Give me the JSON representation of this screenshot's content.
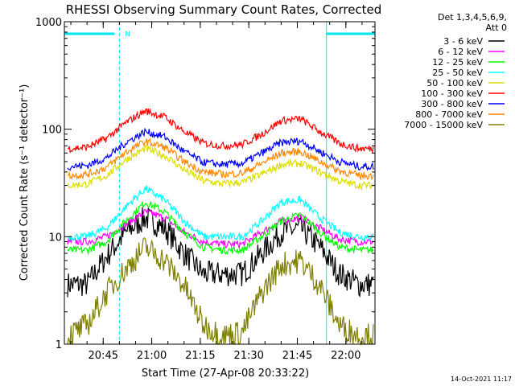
{
  "chart_data": {
    "type": "line",
    "title": "RHESSI Observing Summary Count Rates, Corrected",
    "xlabel": "Start Time (27-Apr-08 20:33:22)",
    "ylabel": "Corrected Count Rate (s⁻¹ detector⁻¹)",
    "yscale": "log",
    "xlim": [
      "20:33",
      "22:09"
    ],
    "ylim": [
      1,
      1000
    ],
    "x_ticks": [
      "20:45",
      "21:00",
      "21:15",
      "21:30",
      "21:45",
      "22:00"
    ],
    "y_ticks": [
      "1",
      "10",
      "100",
      "1000"
    ],
    "legend_header": [
      "Det 1,3,4,5,6,9,",
      "Att 0"
    ],
    "legend_position": "top-right",
    "footer_date": "14-Oct-2021 11:17",
    "night_marker_label": "N",
    "night_intervals": [
      [
        "20:33",
        "20:50"
      ],
      [
        "21:54",
        "22:09"
      ]
    ],
    "night_color": "#00e5ee",
    "series": [
      {
        "name": "3 - 6 keV",
        "color": "#000000",
        "x": [
          "20:34",
          "20:40",
          "20:46",
          "20:52",
          "20:58",
          "21:04",
          "21:10",
          "21:16",
          "21:22",
          "21:28",
          "21:34",
          "21:40",
          "21:46",
          "21:52",
          "21:58",
          "22:04",
          "22:08"
        ],
        "values": [
          3.6,
          3.6,
          6.5,
          11,
          15,
          12,
          7,
          4.5,
          4.5,
          4.5,
          7,
          11,
          12,
          8,
          4.5,
          3.6,
          3.6
        ]
      },
      {
        "name": "6 - 12 keV",
        "color": "#ff00ff",
        "x": [
          "20:34",
          "20:40",
          "20:46",
          "20:52",
          "20:58",
          "21:04",
          "21:10",
          "21:16",
          "21:22",
          "21:28",
          "21:34",
          "21:40",
          "21:46",
          "21:52",
          "21:58",
          "22:04",
          "22:08"
        ],
        "values": [
          9,
          9,
          10,
          13,
          17,
          15,
          11,
          9,
          8.5,
          8.5,
          11,
          14,
          15,
          12,
          9.5,
          9,
          9
        ]
      },
      {
        "name": "12 - 25 keV",
        "color": "#00ff00",
        "x": [
          "20:34",
          "20:40",
          "20:46",
          "20:52",
          "20:58",
          "21:04",
          "21:10",
          "21:16",
          "21:22",
          "21:28",
          "21:34",
          "21:40",
          "21:46",
          "21:52",
          "21:58",
          "22:04",
          "22:08"
        ],
        "values": [
          7.5,
          7.5,
          9,
          14,
          21,
          17,
          11,
          8,
          7.5,
          7.5,
          10,
          14,
          16,
          11,
          8,
          7.5,
          7.5
        ]
      },
      {
        "name": "25 - 50 keV",
        "color": "#00ffff",
        "x": [
          "20:34",
          "20:40",
          "20:46",
          "20:52",
          "20:58",
          "21:04",
          "21:10",
          "21:16",
          "21:22",
          "21:28",
          "21:34",
          "21:40",
          "21:46",
          "21:52",
          "21:58",
          "22:04",
          "22:08"
        ],
        "values": [
          10,
          10,
          12,
          19,
          28,
          22,
          14,
          10,
          10,
          10,
          14,
          21,
          22,
          15,
          11,
          10,
          10
        ]
      },
      {
        "name": "50 - 100 keV",
        "color": "#dddd00",
        "x": [
          "20:34",
          "20:40",
          "20:46",
          "20:52",
          "20:58",
          "21:04",
          "21:10",
          "21:16",
          "21:22",
          "21:28",
          "21:34",
          "21:40",
          "21:46",
          "21:52",
          "21:58",
          "22:04",
          "22:08"
        ],
        "values": [
          30,
          31,
          37,
          52,
          66,
          57,
          42,
          33,
          31,
          32,
          38,
          47,
          48,
          40,
          33,
          30,
          30
        ]
      },
      {
        "name": "100 - 300 keV",
        "color": "#ff0000",
        "x": [
          "20:34",
          "20:40",
          "20:46",
          "20:52",
          "20:58",
          "21:04",
          "21:10",
          "21:16",
          "21:22",
          "21:28",
          "21:34",
          "21:40",
          "21:46",
          "21:52",
          "21:58",
          "22:04",
          "22:08"
        ],
        "values": [
          66,
          68,
          82,
          115,
          148,
          130,
          95,
          74,
          70,
          72,
          90,
          120,
          125,
          95,
          74,
          66,
          66
        ]
      },
      {
        "name": "300 - 800 keV",
        "color": "#0000ff",
        "x": [
          "20:34",
          "20:40",
          "20:46",
          "20:52",
          "20:58",
          "21:04",
          "21:10",
          "21:16",
          "21:22",
          "21:28",
          "21:34",
          "21:40",
          "21:46",
          "21:52",
          "21:58",
          "22:04",
          "22:08"
        ],
        "values": [
          45,
          46,
          54,
          75,
          95,
          85,
          62,
          49,
          47,
          48,
          60,
          75,
          78,
          62,
          50,
          45,
          45
        ]
      },
      {
        "name": "800 - 7000 keV",
        "color": "#ff8800",
        "x": [
          "20:34",
          "20:40",
          "20:46",
          "20:52",
          "20:58",
          "21:04",
          "21:10",
          "21:16",
          "21:22",
          "21:28",
          "21:34",
          "21:40",
          "21:46",
          "21:52",
          "21:58",
          "22:04",
          "22:08"
        ],
        "values": [
          37,
          38,
          44,
          61,
          77,
          68,
          50,
          40,
          38,
          39,
          48,
          60,
          62,
          50,
          41,
          37,
          37
        ]
      },
      {
        "name": "7000 - 15000 keV",
        "color": "#808000",
        "x": [
          "20:34",
          "20:40",
          "20:46",
          "20:52",
          "20:58",
          "21:04",
          "21:10",
          "21:16",
          "21:22",
          "21:28",
          "21:34",
          "21:40",
          "21:46",
          "21:52",
          "21:58",
          "22:04",
          "22:08"
        ],
        "values": [
          1.2,
          1.5,
          3,
          5,
          8,
          6,
          3.5,
          1.5,
          1.2,
          1.3,
          3,
          5.5,
          6,
          3.5,
          1.5,
          1.2,
          1.2
        ]
      }
    ]
  }
}
